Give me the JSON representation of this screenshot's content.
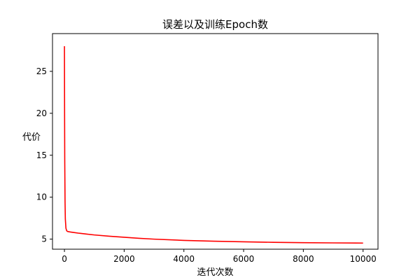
{
  "chart_data": {
    "type": "line",
    "title": "误差以及训练Epoch数",
    "xlabel": "迭代次数",
    "ylabel": "代价",
    "xlim": [
      -400,
      10500
    ],
    "ylim": [
      3.8,
      29.5
    ],
    "x_ticks": [
      0,
      2000,
      4000,
      6000,
      8000,
      10000
    ],
    "y_ticks": [
      5,
      10,
      15,
      20,
      25
    ],
    "grid": false,
    "series": [
      {
        "color": "#ff0000",
        "x": [
          0,
          5,
          10,
          20,
          30,
          50,
          75,
          100,
          150,
          200,
          300,
          500,
          750,
          1000,
          1500,
          2000,
          2500,
          3000,
          4000,
          5000,
          6000,
          7000,
          8000,
          9000,
          10000
        ],
        "y": [
          28.0,
          20.0,
          14.5,
          9.5,
          7.4,
          6.3,
          6.0,
          5.92,
          5.88,
          5.85,
          5.8,
          5.7,
          5.6,
          5.5,
          5.35,
          5.22,
          5.1,
          5.0,
          4.85,
          4.75,
          4.68,
          4.62,
          4.58,
          4.55,
          4.53
        ]
      }
    ]
  }
}
